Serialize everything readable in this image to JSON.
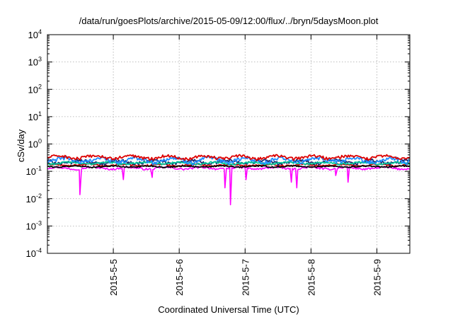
{
  "chart_data": {
    "type": "line",
    "title": "/data/run/goesPlots/archive/2015-05-09/12:00/flux/../bryn/5daysMoon.plot",
    "xlabel": "Coordinated Universal Time (UTC)",
    "ylabel": "cSv/day",
    "yscale": "log",
    "ylim": [
      0.0001,
      10000
    ],
    "y_ticks": [
      {
        "value": 0.0001,
        "base": "10",
        "exp": "-4"
      },
      {
        "value": 0.001,
        "base": "10",
        "exp": "-3"
      },
      {
        "value": 0.01,
        "base": "10",
        "exp": "-2"
      },
      {
        "value": 0.1,
        "base": "10",
        "exp": "-1"
      },
      {
        "value": 1,
        "base": "10",
        "exp": "0"
      },
      {
        "value": 10,
        "base": "10",
        "exp": "1"
      },
      {
        "value": 100,
        "base": "10",
        "exp": "2"
      },
      {
        "value": 1000,
        "base": "10",
        "exp": "3"
      },
      {
        "value": 10000,
        "base": "10",
        "exp": "4"
      }
    ],
    "xlim": [
      "2015-05-04T00:00",
      "2015-05-09T12:00"
    ],
    "x_ticks": [
      {
        "value": "2015-05-05T00:00",
        "label": "2015-5-5"
      },
      {
        "value": "2015-05-06T00:00",
        "label": "2015-5-6"
      },
      {
        "value": "2015-05-07T00:00",
        "label": "2015-5-7"
      },
      {
        "value": "2015-05-08T00:00",
        "label": "2015-5-8"
      },
      {
        "value": "2015-05-09T00:00",
        "label": "2015-5-9"
      }
    ],
    "grid": true,
    "series": [
      {
        "color": "#ff00ff",
        "base": 0.13,
        "amp": 0.02,
        "dips": [
          {
            "t": "2015-05-04T11:50",
            "v": 0.014
          },
          {
            "t": "2015-05-05T03:40",
            "v": 0.05
          },
          {
            "t": "2015-05-05T14:10",
            "v": 0.06
          },
          {
            "t": "2015-05-06T16:40",
            "v": 0.025
          },
          {
            "t": "2015-05-06T18:40",
            "v": 0.006
          },
          {
            "t": "2015-05-07T00:20",
            "v": 0.05
          },
          {
            "t": "2015-05-07T16:50",
            "v": 0.04
          },
          {
            "t": "2015-05-07T18:50",
            "v": 0.025
          },
          {
            "t": "2015-05-08T09:00",
            "v": 0.07
          },
          {
            "t": "2015-05-08T13:30",
            "v": 0.04
          }
        ]
      },
      {
        "color": "#cc0000",
        "base": 0.17,
        "amp": 0.025
      },
      {
        "color": "#1a2b6e",
        "base": 0.22,
        "amp": 0.06
      },
      {
        "color": "#000000",
        "base": 0.15,
        "amp": 0.015
      },
      {
        "color": "#00c89a",
        "base": 0.2,
        "amp": 0.03
      },
      {
        "color": "#1f8cff",
        "base": 0.26,
        "amp": 0.09
      },
      {
        "color": "#dd0000",
        "base": 0.33,
        "amp": 0.08
      }
    ]
  }
}
